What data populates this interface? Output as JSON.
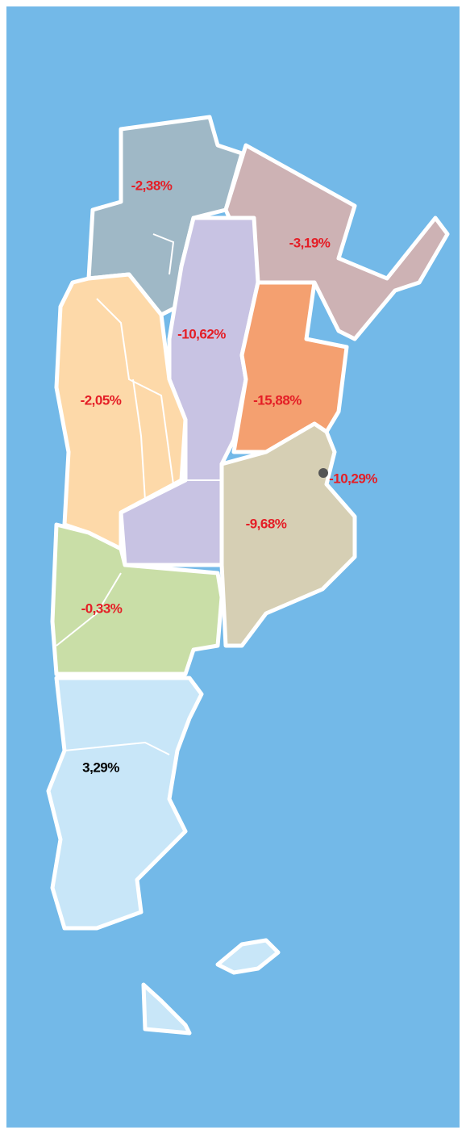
{
  "map": {
    "regions": [
      {
        "label": "-2,38%"
      },
      {
        "label": "-3,19%"
      },
      {
        "label": "-10,62%"
      },
      {
        "label": "-15,88%"
      },
      {
        "label": "-2,05%"
      },
      {
        "label": "-10,29%"
      },
      {
        "label": "-9,68%"
      },
      {
        "label": "-0,33%"
      },
      {
        "label": "3,29%"
      }
    ]
  }
}
